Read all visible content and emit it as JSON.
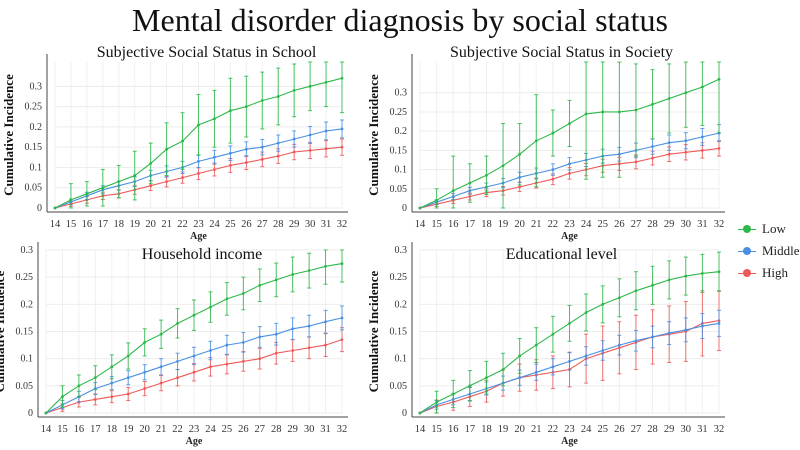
{
  "title": "Mental disorder diagnosis by social status",
  "colors": {
    "Low": "#2db84a",
    "Middle": "#4a90e2",
    "High": "#ee5a5a"
  },
  "legend": [
    "Low",
    "Middle",
    "High"
  ],
  "chart_data": [
    {
      "type": "line",
      "title": "Subjective Social Status in School",
      "xlabel": "Age",
      "ylabel": "Cumulative Incidence",
      "x": [
        14,
        15,
        16,
        17,
        18,
        19,
        20,
        21,
        22,
        23,
        24,
        25,
        26,
        27,
        28,
        29,
        30,
        31,
        32
      ],
      "yticks": [
        "0",
        "0.05",
        "0.1",
        "0.15",
        "0.2",
        "0.25",
        "0.3"
      ],
      "ylim": [
        0,
        0.36
      ],
      "series": [
        {
          "name": "Low",
          "values": [
            0,
            0.02,
            0.035,
            0.05,
            0.065,
            0.08,
            0.11,
            0.145,
            0.165,
            0.205,
            0.22,
            0.24,
            0.25,
            0.265,
            0.275,
            0.29,
            0.3,
            0.31,
            0.32
          ],
          "err": [
            0,
            0.04,
            0.03,
            0.045,
            0.04,
            0.06,
            0.05,
            0.065,
            0.07,
            0.075,
            0.07,
            0.08,
            0.075,
            0.07,
            0.07,
            0.065,
            0.06,
            0.06,
            0.085
          ]
        },
        {
          "name": "Middle",
          "values": [
            0,
            0.015,
            0.03,
            0.045,
            0.055,
            0.065,
            0.08,
            0.09,
            0.1,
            0.115,
            0.125,
            0.135,
            0.145,
            0.15,
            0.16,
            0.17,
            0.18,
            0.19,
            0.195
          ],
          "err": [
            0,
            0.007,
            0.009,
            0.01,
            0.011,
            0.012,
            0.013,
            0.014,
            0.015,
            0.016,
            0.017,
            0.018,
            0.018,
            0.019,
            0.02,
            0.02,
            0.021,
            0.022,
            0.022
          ]
        },
        {
          "name": "High",
          "values": [
            0,
            0.01,
            0.02,
            0.03,
            0.035,
            0.045,
            0.055,
            0.065,
            0.075,
            0.085,
            0.095,
            0.105,
            0.112,
            0.12,
            0.128,
            0.138,
            0.142,
            0.146,
            0.15
          ],
          "err": [
            0,
            0.006,
            0.008,
            0.009,
            0.01,
            0.011,
            0.012,
            0.013,
            0.014,
            0.015,
            0.016,
            0.017,
            0.017,
            0.018,
            0.018,
            0.019,
            0.02,
            0.02,
            0.02
          ]
        }
      ]
    },
    {
      "type": "line",
      "title": "Subjective Social Status in Society",
      "xlabel": "Age",
      "ylabel": "Cumulative Incidence",
      "x": [
        14,
        15,
        16,
        17,
        18,
        19,
        20,
        21,
        22,
        23,
        24,
        25,
        26,
        27,
        28,
        29,
        30,
        31,
        32
      ],
      "yticks": [
        "0",
        "0.05",
        "0.1",
        "0.15",
        "0.2",
        "0.25",
        "0.3"
      ],
      "ylim": [
        0,
        0.38
      ],
      "series": [
        {
          "name": "Low",
          "values": [
            0,
            0.02,
            0.045,
            0.065,
            0.085,
            0.11,
            0.14,
            0.175,
            0.195,
            0.22,
            0.245,
            0.25,
            0.25,
            0.255,
            0.27,
            0.285,
            0.3,
            0.315,
            0.335
          ],
          "err": [
            0,
            0.03,
            0.09,
            0.05,
            0.05,
            0.11,
            0.08,
            0.12,
            0.06,
            0.06,
            0.17,
            0.17,
            0.17,
            0.12,
            0.09,
            0.09,
            0.09,
            0.1,
            0.14
          ]
        },
        {
          "name": "Middle",
          "values": [
            0,
            0.015,
            0.03,
            0.045,
            0.055,
            0.065,
            0.08,
            0.09,
            0.1,
            0.115,
            0.125,
            0.135,
            0.14,
            0.15,
            0.16,
            0.17,
            0.175,
            0.185,
            0.195
          ],
          "err": [
            0,
            0.006,
            0.008,
            0.009,
            0.01,
            0.012,
            0.013,
            0.014,
            0.015,
            0.016,
            0.017,
            0.018,
            0.018,
            0.019,
            0.02,
            0.02,
            0.021,
            0.022,
            0.022
          ]
        },
        {
          "name": "High",
          "values": [
            0,
            0.01,
            0.02,
            0.03,
            0.04,
            0.045,
            0.055,
            0.065,
            0.075,
            0.09,
            0.1,
            0.11,
            0.115,
            0.12,
            0.13,
            0.14,
            0.145,
            0.15,
            0.155
          ],
          "err": [
            0,
            0.006,
            0.008,
            0.009,
            0.01,
            0.011,
            0.012,
            0.013,
            0.014,
            0.015,
            0.016,
            0.017,
            0.017,
            0.018,
            0.018,
            0.019,
            0.02,
            0.02,
            0.02
          ]
        }
      ]
    },
    {
      "type": "line",
      "title": "Household income",
      "xlabel": "Age",
      "ylabel": "Cumulative Incidence",
      "x": [
        14,
        15,
        16,
        17,
        18,
        19,
        20,
        21,
        22,
        23,
        24,
        25,
        26,
        27,
        28,
        29,
        30,
        31,
        32
      ],
      "yticks": [
        "0",
        "0.05",
        "0.1",
        "0.15",
        "0.2",
        "0.25",
        "0.3"
      ],
      "ylim": [
        0,
        0.3
      ],
      "series": [
        {
          "name": "Low",
          "values": [
            0,
            0.03,
            0.05,
            0.065,
            0.085,
            0.105,
            0.13,
            0.145,
            0.165,
            0.18,
            0.195,
            0.21,
            0.22,
            0.235,
            0.245,
            0.255,
            0.262,
            0.27,
            0.275
          ],
          "err": [
            0,
            0.02,
            0.02,
            0.022,
            0.022,
            0.024,
            0.025,
            0.026,
            0.027,
            0.028,
            0.028,
            0.03,
            0.03,
            0.03,
            0.031,
            0.032,
            0.032,
            0.033,
            0.034
          ]
        },
        {
          "name": "Middle",
          "values": [
            0,
            0.015,
            0.03,
            0.045,
            0.055,
            0.065,
            0.075,
            0.085,
            0.095,
            0.105,
            0.115,
            0.125,
            0.13,
            0.14,
            0.145,
            0.155,
            0.16,
            0.168,
            0.175
          ],
          "err": [
            0,
            0.008,
            0.01,
            0.011,
            0.012,
            0.013,
            0.014,
            0.015,
            0.015,
            0.016,
            0.017,
            0.018,
            0.018,
            0.019,
            0.02,
            0.02,
            0.02,
            0.021,
            0.022
          ]
        },
        {
          "name": "High",
          "values": [
            0,
            0.01,
            0.02,
            0.025,
            0.03,
            0.035,
            0.045,
            0.055,
            0.065,
            0.075,
            0.085,
            0.09,
            0.095,
            0.1,
            0.11,
            0.115,
            0.12,
            0.125,
            0.135
          ],
          "err": [
            0,
            0.007,
            0.009,
            0.01,
            0.011,
            0.012,
            0.013,
            0.014,
            0.015,
            0.016,
            0.017,
            0.018,
            0.018,
            0.019,
            0.02,
            0.02,
            0.02,
            0.021,
            0.022
          ]
        }
      ]
    },
    {
      "type": "line",
      "title": "Educational level",
      "xlabel": "Age",
      "ylabel": "Cumulative Incidence",
      "x": [
        14,
        15,
        16,
        17,
        18,
        19,
        20,
        21,
        22,
        23,
        24,
        25,
        26,
        27,
        28,
        29,
        30,
        31,
        32
      ],
      "yticks": [
        "0",
        "0.05",
        "0.1",
        "0.15",
        "0.2",
        "0.25",
        "0.3"
      ],
      "ylim": [
        0,
        0.3
      ],
      "series": [
        {
          "name": "Low",
          "values": [
            0,
            0.02,
            0.035,
            0.05,
            0.065,
            0.08,
            0.105,
            0.125,
            0.145,
            0.165,
            0.185,
            0.2,
            0.212,
            0.225,
            0.235,
            0.245,
            0.252,
            0.257,
            0.26
          ],
          "err": [
            0,
            0.02,
            0.025,
            0.028,
            0.03,
            0.03,
            0.032,
            0.032,
            0.033,
            0.033,
            0.034,
            0.034,
            0.035,
            0.035,
            0.035,
            0.035,
            0.035,
            0.035,
            0.036
          ]
        },
        {
          "name": "Middle",
          "values": [
            0,
            0.015,
            0.025,
            0.035,
            0.045,
            0.055,
            0.065,
            0.075,
            0.085,
            0.095,
            0.105,
            0.115,
            0.125,
            0.133,
            0.14,
            0.147,
            0.153,
            0.16,
            0.165
          ],
          "err": [
            0,
            0.008,
            0.01,
            0.012,
            0.012,
            0.013,
            0.014,
            0.015,
            0.015,
            0.016,
            0.017,
            0.018,
            0.018,
            0.019,
            0.02,
            0.021,
            0.022,
            0.023,
            0.024
          ]
        },
        {
          "name": "High",
          "values": [
            0,
            0.012,
            0.02,
            0.03,
            0.04,
            0.055,
            0.065,
            0.07,
            0.075,
            0.08,
            0.1,
            0.11,
            0.12,
            0.13,
            0.14,
            0.145,
            0.15,
            0.165,
            0.17
          ],
          "err": [
            0,
            0.012,
            0.015,
            0.018,
            0.02,
            0.024,
            0.025,
            0.028,
            0.03,
            0.032,
            0.045,
            0.05,
            0.048,
            0.05,
            0.05,
            0.052,
            0.055,
            0.06,
            0.055
          ]
        }
      ]
    }
  ]
}
